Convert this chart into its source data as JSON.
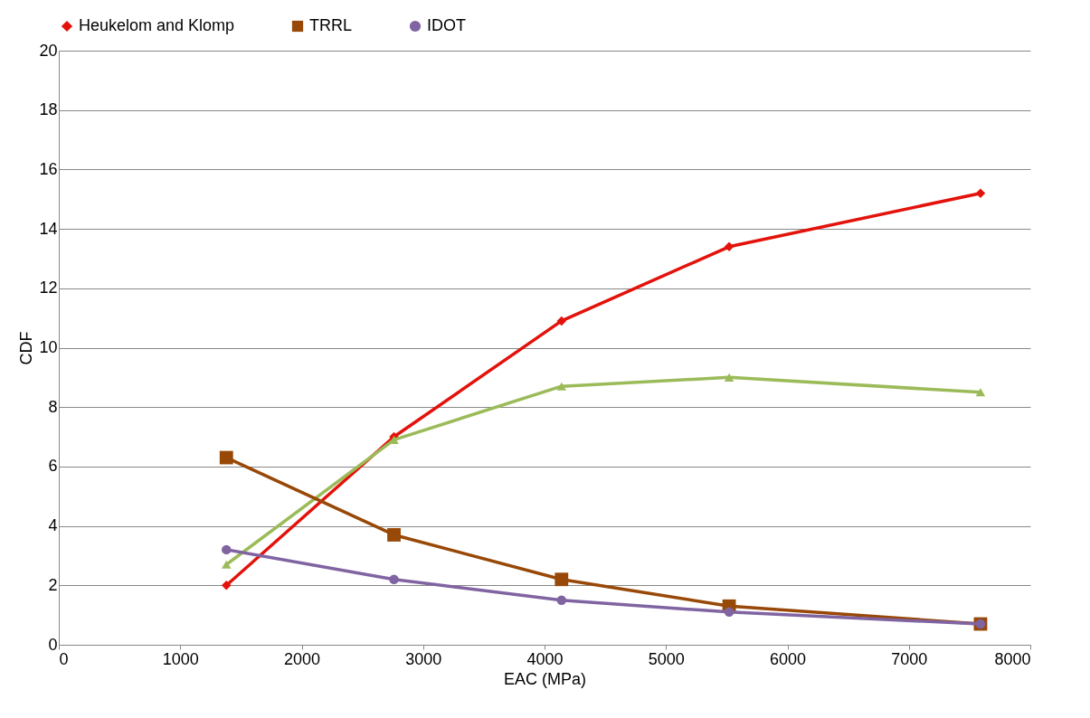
{
  "chart_data": {
    "type": "line",
    "xlabel": "EAC (MPa)",
    "ylabel": "CDF",
    "x": [
      1380,
      2760,
      4140,
      5520,
      7590
    ],
    "series": [
      {
        "name": "Heukelom and Klomp",
        "color": "#e3120b",
        "marker": "diamond",
        "values": [
          2.0,
          7.0,
          10.9,
          13.4,
          15.2
        ]
      },
      {
        "color": "#9bbb59",
        "marker": "triangle",
        "values": [
          2.7,
          6.9,
          8.7,
          9.0,
          8.5
        ]
      },
      {
        "name": "TRRL",
        "color": "#984807",
        "marker": "square",
        "values": [
          6.3,
          3.7,
          2.2,
          1.3,
          0.7
        ]
      },
      {
        "name": "IDOT",
        "color": "#8064a2",
        "marker": "circle",
        "values": [
          3.2,
          2.2,
          1.5,
          1.1,
          0.7
        ]
      }
    ],
    "xlim": [
      0,
      8000
    ],
    "xticks": [
      0,
      1000,
      2000,
      3000,
      4000,
      5000,
      6000,
      7000,
      8000
    ],
    "ylim": [
      0,
      20
    ],
    "yticks": [
      0,
      2,
      4,
      6,
      8,
      10,
      12,
      14,
      16,
      18,
      20
    ],
    "grid": "y",
    "legend": "top",
    "line_style": "solid"
  }
}
